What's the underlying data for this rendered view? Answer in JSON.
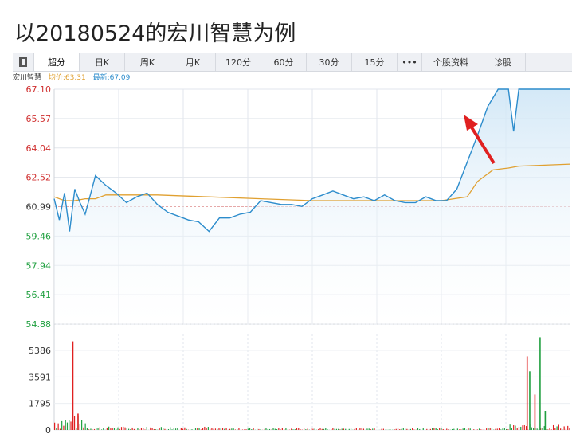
{
  "headline": "以20180524的宏川智慧为例",
  "tabs": [
    {
      "label": "超分",
      "active": true
    },
    {
      "label": "日K"
    },
    {
      "label": "周K"
    },
    {
      "label": "月K"
    },
    {
      "label": "120分"
    },
    {
      "label": "60分"
    },
    {
      "label": "30分"
    },
    {
      "label": "15分"
    },
    {
      "label": "•••"
    },
    {
      "label": "个股资料"
    },
    {
      "label": "诊股"
    }
  ],
  "info": {
    "stock": "宏川智慧",
    "avg": "均价:63.31",
    "last": "最新:67.09"
  },
  "colors": {
    "price": "#2c8ccc",
    "avg": "#e0a030",
    "up": "#e02020",
    "down": "#20a040",
    "arrow": "#e02020"
  },
  "chart_data": [
    {
      "type": "line",
      "title": "",
      "x_range": [
        0,
        100
      ],
      "ylim": [
        54.88,
        67.1
      ],
      "y_ticks": [
        {
          "label": "67.10",
          "color": "#d03030"
        },
        {
          "label": "65.57",
          "color": "#d03030"
        },
        {
          "label": "64.04",
          "color": "#d03030"
        },
        {
          "label": "62.52",
          "color": "#d03030"
        },
        {
          "label": "60.99",
          "color": "#333333"
        },
        {
          "label": "59.46",
          "color": "#20a040"
        },
        {
          "label": "57.94",
          "color": "#20a040"
        },
        {
          "label": "56.41",
          "color": "#20a040"
        },
        {
          "label": "54.88",
          "color": "#20a040"
        }
      ],
      "series": [
        {
          "values_x": [
            0,
            1,
            2,
            3,
            4,
            5,
            6,
            7,
            8,
            10,
            12,
            14,
            16,
            18,
            20,
            22,
            24,
            26,
            28,
            30,
            32,
            34,
            36,
            38,
            40,
            42,
            44,
            46,
            48,
            50,
            52,
            54,
            56,
            58,
            60,
            62,
            64,
            66,
            68,
            70,
            72,
            74,
            76,
            78,
            80,
            82,
            84,
            86,
            88,
            89,
            90,
            91,
            91.5,
            92,
            92.5,
            93,
            94,
            95,
            96,
            97,
            98,
            99,
            100
          ],
          "values": [
            61.4,
            60.3,
            61.7,
            59.7,
            61.9,
            61.2,
            60.6,
            61.6,
            62.6,
            62.1,
            61.7,
            61.2,
            61.5,
            61.7,
            61.1,
            60.7,
            60.5,
            60.3,
            60.2,
            59.7,
            60.4,
            60.4,
            60.6,
            60.7,
            61.3,
            61.2,
            61.1,
            61.1,
            61.0,
            61.4,
            61.6,
            61.8,
            61.6,
            61.4,
            61.5,
            61.3,
            61.6,
            61.3,
            61.2,
            61.2,
            61.5,
            61.3,
            61.3,
            61.9,
            63.3,
            64.7,
            66.2,
            67.1,
            67.1,
            64.9,
            67.1,
            67.1,
            67.1,
            67.1,
            67.1,
            67.1,
            67.1,
            67.1,
            67.1,
            67.1,
            67.1,
            67.1,
            67.1
          ]
        },
        {
          "values_x": [
            0,
            2,
            4,
            6,
            8,
            10,
            20,
            30,
            40,
            50,
            60,
            70,
            75,
            80,
            82,
            85,
            88,
            90,
            100
          ],
          "values": [
            61.5,
            61.3,
            61.3,
            61.4,
            61.4,
            61.6,
            61.6,
            61.5,
            61.4,
            61.3,
            61.3,
            61.3,
            61.3,
            61.5,
            62.3,
            62.9,
            63.0,
            63.1,
            63.2
          ]
        }
      ]
    },
    {
      "type": "bar",
      "title": "",
      "ylim": [
        0,
        7000
      ],
      "y_ticks": [
        "5386",
        "3591",
        "1795",
        "0"
      ],
      "spikes": [
        {
          "x": 3.5,
          "value": 6500,
          "up": true
        },
        {
          "x": 4.5,
          "value": 1200,
          "up": true
        },
        {
          "x": 91.5,
          "value": 5400,
          "up": true
        },
        {
          "x": 92,
          "value": 4300,
          "up": false
        },
        {
          "x": 93,
          "value": 2600,
          "up": true
        },
        {
          "x": 94,
          "value": 6800,
          "up": false
        },
        {
          "x": 95,
          "value": 1400,
          "up": false
        }
      ]
    }
  ]
}
